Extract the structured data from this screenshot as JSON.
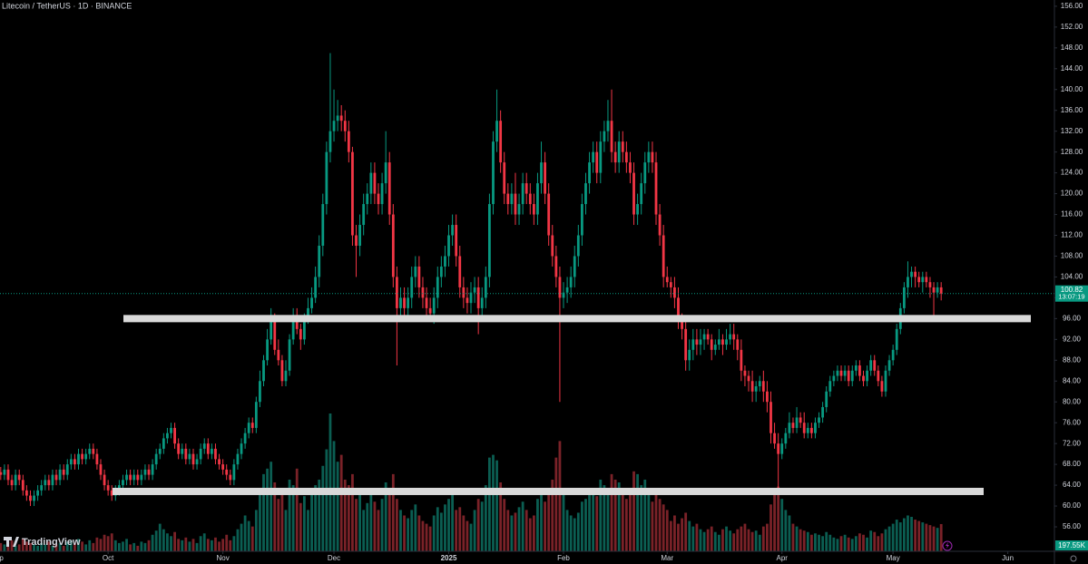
{
  "chart_data": {
    "type": "candlestick",
    "title": "Litecoin / TetherUS · 1D · BINANCE",
    "watermark": "TradingView",
    "up_color": "#089981",
    "down_color": "#f23645",
    "up_volume_color": "#0b5e52",
    "down_volume_color": "#7a2228",
    "level_color": "#d9d9d9",
    "grid": false,
    "xlim": [
      -0.2,
      284.1
    ],
    "ylim": [
      51.3,
      157.2
    ],
    "volume_lim": [
      0,
      4000
    ],
    "xticks": [
      {
        "value": -1,
        "label": "Sep"
      },
      {
        "value": 29,
        "label": "Oct"
      },
      {
        "value": 60,
        "label": "Nov"
      },
      {
        "value": 90,
        "label": "Dec"
      },
      {
        "value": 121,
        "label": "2025"
      },
      {
        "value": 152,
        "label": "Feb"
      },
      {
        "value": 180,
        "label": "Mar"
      },
      {
        "value": 211,
        "label": "Apr"
      },
      {
        "value": 241,
        "label": "May"
      },
      {
        "value": 272,
        "label": "Jun"
      }
    ],
    "yticks": [
      {
        "value": 56,
        "label": "56.00"
      },
      {
        "value": 60,
        "label": "60.00"
      },
      {
        "value": 64,
        "label": "64.00"
      },
      {
        "value": 68,
        "label": "68.00"
      },
      {
        "value": 72,
        "label": "72.00"
      },
      {
        "value": 76,
        "label": "76.00"
      },
      {
        "value": 80,
        "label": "80.00"
      },
      {
        "value": 84,
        "label": "84.00"
      },
      {
        "value": 88,
        "label": "88.00"
      },
      {
        "value": 92,
        "label": "92.00"
      },
      {
        "value": 96,
        "label": "96.00"
      },
      {
        "value": 100,
        "label": "100.00"
      },
      {
        "value": 104,
        "label": "104.00"
      },
      {
        "value": 108,
        "label": "108.00"
      },
      {
        "value": 112,
        "label": "112.00"
      },
      {
        "value": 116,
        "label": "116.00"
      },
      {
        "value": 120,
        "label": "120.00"
      },
      {
        "value": 124,
        "label": "124.00"
      },
      {
        "value": 128,
        "label": "128.00"
      },
      {
        "value": 132,
        "label": "132.00"
      },
      {
        "value": 136,
        "label": "136.00"
      },
      {
        "value": 140,
        "label": "140.00"
      },
      {
        "value": 144,
        "label": "144.00"
      },
      {
        "value": 148,
        "label": "148.00"
      },
      {
        "value": 152,
        "label": "152.00"
      },
      {
        "value": 156,
        "label": "156.00"
      }
    ],
    "levels": [
      96,
      62.8
    ],
    "open": [
      66.5,
      66,
      67,
      65,
      64,
      66,
      65,
      63,
      62,
      61,
      62,
      63,
      64,
      65,
      64,
      66,
      65,
      67,
      66,
      68,
      69,
      68,
      70,
      69,
      70,
      71,
      70,
      68,
      66,
      64,
      63,
      62,
      63,
      64,
      65,
      66,
      65,
      66,
      65,
      66,
      67,
      66,
      68,
      70,
      71,
      73,
      74,
      75,
      72,
      70,
      71,
      69,
      70,
      68,
      69,
      71,
      72,
      70,
      71,
      69,
      68,
      67,
      66,
      65,
      68,
      70,
      72,
      74,
      76,
      75,
      80,
      84,
      88,
      92,
      96,
      90,
      88,
      84,
      86,
      92,
      96,
      94,
      92,
      96,
      98,
      100,
      104,
      110,
      118,
      128,
      132,
      134,
      135,
      134,
      132,
      128,
      112,
      110,
      114,
      118,
      120,
      124,
      120,
      118,
      122,
      126,
      116,
      104,
      98,
      100,
      98,
      100,
      104,
      106,
      102,
      100,
      98,
      97,
      100,
      104,
      106,
      108,
      112,
      114,
      108,
      102,
      100,
      99,
      101,
      102,
      98,
      100,
      104,
      118,
      130,
      134,
      126,
      120,
      118,
      120,
      116,
      118,
      122,
      120,
      118,
      116,
      122,
      126,
      120,
      112,
      108,
      104,
      100,
      101,
      102,
      104,
      108,
      112,
      118,
      122,
      126,
      128,
      124,
      130,
      132,
      134,
      128,
      126,
      130,
      128,
      126,
      124,
      116,
      118,
      122,
      126,
      128,
      126,
      116,
      112,
      104,
      103,
      102,
      100,
      96,
      94,
      88,
      90,
      92,
      91,
      92,
      93,
      92,
      90,
      91,
      92,
      91,
      92,
      93,
      92,
      90,
      86,
      85,
      84,
      82,
      83,
      84,
      82,
      80,
      74,
      72,
      70,
      72,
      74,
      76,
      75,
      77,
      76,
      74,
      75,
      74,
      76,
      77,
      79,
      82,
      84,
      85,
      86,
      85,
      86,
      84,
      86,
      87,
      85,
      84,
      86,
      88,
      86,
      84,
      82,
      86,
      88,
      90,
      94,
      98,
      102,
      104,
      105,
      104,
      103,
      104,
      103,
      102,
      101,
      102
    ],
    "high": [
      67.5,
      68,
      68,
      66,
      67,
      67,
      66,
      64,
      63,
      63,
      64,
      65,
      66,
      66,
      67,
      67,
      68,
      68,
      69,
      70,
      70,
      71,
      71,
      71,
      72,
      72,
      71,
      69,
      67,
      65,
      64,
      64,
      65,
      66,
      67,
      67,
      67,
      67,
      67,
      68,
      68,
      69,
      71,
      72,
      74,
      75,
      76,
      76,
      73,
      72,
      72,
      71,
      71,
      70,
      72,
      73,
      73,
      72,
      72,
      70,
      69,
      68,
      67,
      69,
      71,
      73,
      75,
      77,
      77,
      81,
      86,
      89,
      94,
      98,
      97,
      92,
      89,
      88,
      93,
      98,
      98,
      95,
      97,
      100,
      102,
      106,
      112,
      120,
      130,
      147,
      140,
      138,
      137,
      136,
      134,
      129,
      114,
      116,
      120,
      122,
      126,
      126,
      122,
      124,
      132,
      128,
      118,
      106,
      102,
      102,
      102,
      106,
      108,
      108,
      104,
      102,
      100,
      102,
      106,
      108,
      110,
      114,
      116,
      116,
      110,
      104,
      102,
      103,
      104,
      104,
      102,
      106,
      120,
      132,
      140,
      136,
      128,
      122,
      122,
      124,
      120,
      124,
      124,
      122,
      120,
      124,
      130,
      128,
      122,
      114,
      110,
      106,
      103,
      104,
      106,
      110,
      114,
      120,
      124,
      128,
      130,
      130,
      132,
      134,
      138,
      140,
      130,
      132,
      132,
      130,
      128,
      126,
      120,
      124,
      128,
      130,
      130,
      128,
      118,
      114,
      106,
      104,
      104,
      102,
      97,
      96,
      92,
      94,
      94,
      94,
      94,
      94,
      93,
      92,
      94,
      93,
      94,
      95,
      95,
      93,
      92,
      87,
      86,
      86,
      84,
      85,
      86,
      84,
      82,
      76,
      74,
      73,
      75,
      78,
      77,
      79,
      78,
      78,
      76,
      76,
      77,
      78,
      80,
      83,
      85,
      86,
      87,
      87,
      87,
      87,
      87,
      88,
      88,
      86,
      87,
      89,
      89,
      87,
      85,
      87,
      89,
      91,
      95,
      99,
      103,
      107,
      106,
      106,
      105,
      105,
      105,
      104,
      103,
      103,
      103
    ],
    "low": [
      65,
      65,
      64,
      63,
      63,
      64,
      62,
      61,
      60,
      60,
      61,
      62,
      63,
      63,
      63,
      64,
      64,
      65,
      65,
      67,
      67,
      67,
      68,
      68,
      69,
      69,
      67,
      65,
      63,
      62,
      61,
      61,
      62,
      63,
      64,
      64,
      64,
      64,
      64,
      65,
      65,
      65,
      67,
      69,
      70,
      72,
      73,
      71,
      69,
      69,
      68,
      68,
      67,
      67,
      68,
      70,
      69,
      69,
      68,
      67,
      66,
      65,
      64,
      64,
      67,
      69,
      71,
      73,
      74,
      74,
      79,
      83,
      87,
      91,
      89,
      87,
      83,
      83,
      85,
      91,
      93,
      90,
      91,
      95,
      97,
      99,
      102,
      108,
      116,
      126,
      130,
      132,
      132,
      130,
      126,
      110,
      104,
      108,
      112,
      116,
      118,
      118,
      116,
      116,
      120,
      114,
      102,
      87,
      96,
      96,
      96,
      98,
      102,
      100,
      98,
      96,
      96,
      95,
      98,
      102,
      104,
      106,
      110,
      106,
      100,
      98,
      97,
      97,
      99,
      93,
      96,
      98,
      102,
      116,
      128,
      124,
      118,
      116,
      116,
      114,
      114,
      116,
      118,
      116,
      114,
      114,
      120,
      118,
      110,
      106,
      102,
      80,
      98,
      99,
      100,
      102,
      106,
      110,
      116,
      120,
      124,
      122,
      122,
      128,
      130,
      126,
      124,
      124,
      126,
      124,
      122,
      114,
      114,
      116,
      120,
      124,
      124,
      114,
      110,
      102,
      102,
      100,
      98,
      94,
      92,
      86,
      86,
      88,
      89,
      89,
      90,
      91,
      88,
      89,
      90,
      89,
      90,
      91,
      90,
      88,
      84,
      83,
      82,
      80,
      80,
      82,
      80,
      78,
      72,
      71,
      63,
      69,
      71,
      73,
      74,
      74,
      75,
      73,
      73,
      73,
      73,
      75,
      76,
      78,
      81,
      83,
      84,
      84,
      84,
      83,
      83,
      85,
      84,
      83,
      83,
      85,
      85,
      83,
      81,
      81,
      85,
      87,
      89,
      93,
      97,
      100,
      102,
      102,
      102,
      101,
      102,
      100,
      96,
      100,
      99.5
    ],
    "close": [
      66,
      67,
      65,
      64,
      66,
      65,
      63,
      62,
      61,
      62,
      63,
      64,
      65,
      64,
      66,
      65,
      67,
      66,
      68,
      69,
      68,
      70,
      69,
      70,
      71,
      70,
      68,
      66,
      64,
      63,
      62,
      63,
      64,
      65,
      66,
      65,
      66,
      65,
      66,
      67,
      66,
      68,
      70,
      71,
      73,
      74,
      75,
      72,
      70,
      71,
      69,
      70,
      68,
      69,
      71,
      72,
      70,
      71,
      69,
      68,
      67,
      66,
      65,
      68,
      70,
      72,
      74,
      76,
      75,
      80,
      84,
      88,
      92,
      96,
      90,
      88,
      84,
      86,
      92,
      96,
      94,
      92,
      96,
      98,
      100,
      104,
      110,
      118,
      128,
      132,
      134,
      135,
      134,
      132,
      128,
      112,
      110,
      114,
      118,
      120,
      124,
      120,
      118,
      122,
      126,
      116,
      104,
      98,
      100,
      98,
      100,
      104,
      106,
      102,
      100,
      98,
      97,
      100,
      104,
      106,
      108,
      112,
      114,
      108,
      102,
      100,
      99,
      101,
      102,
      98,
      100,
      104,
      118,
      130,
      134,
      126,
      120,
      118,
      120,
      116,
      118,
      122,
      120,
      118,
      116,
      122,
      126,
      120,
      112,
      108,
      104,
      100,
      101,
      102,
      104,
      108,
      112,
      118,
      122,
      126,
      128,
      124,
      130,
      132,
      134,
      128,
      126,
      130,
      128,
      126,
      124,
      116,
      118,
      122,
      126,
      128,
      126,
      116,
      112,
      104,
      103,
      102,
      100,
      96,
      94,
      88,
      90,
      92,
      91,
      92,
      93,
      92,
      90,
      91,
      92,
      91,
      92,
      93,
      92,
      90,
      86,
      85,
      84,
      82,
      83,
      84,
      82,
      80,
      74,
      72,
      70,
      72,
      74,
      76,
      75,
      77,
      76,
      74,
      75,
      74,
      76,
      77,
      79,
      82,
      84,
      85,
      86,
      85,
      86,
      84,
      86,
      87,
      85,
      84,
      86,
      88,
      86,
      84,
      82,
      86,
      88,
      90,
      94,
      98,
      102,
      104,
      105,
      104,
      103,
      104,
      103,
      102,
      101,
      102,
      100.82
    ],
    "volume": [
      60,
      50,
      70,
      80,
      40,
      50,
      90,
      70,
      60,
      50,
      40,
      60,
      50,
      70,
      40,
      50,
      60,
      40,
      70,
      80,
      60,
      90,
      70,
      50,
      80,
      60,
      100,
      90,
      120,
      110,
      130,
      80,
      60,
      70,
      90,
      50,
      60,
      40,
      70,
      60,
      80,
      120,
      150,
      200,
      160,
      130,
      110,
      140,
      90,
      80,
      100,
      70,
      90,
      60,
      110,
      130,
      90,
      80,
      100,
      70,
      90,
      120,
      80,
      110,
      160,
      200,
      260,
      220,
      180,
      300,
      420,
      560,
      600,
      650,
      500,
      380,
      420,
      300,
      520,
      480,
      600,
      350,
      400,
      300,
      420,
      480,
      520,
      620,
      740,
      1000,
      800,
      650,
      700,
      520,
      480,
      560,
      380,
      460,
      300,
      350,
      420,
      360,
      300,
      380,
      500,
      460,
      560,
      380,
      300,
      260,
      240,
      300,
      340,
      260,
      220,
      200,
      180,
      260,
      320,
      280,
      340,
      380,
      420,
      300,
      320,
      260,
      220,
      200,
      300,
      380,
      360,
      480,
      680,
      700,
      660,
      500,
      380,
      300,
      260,
      280,
      320,
      360,
      300,
      240,
      260,
      380,
      420,
      360,
      460,
      520,
      680,
      800,
      420,
      300,
      260,
      240,
      280,
      360,
      380,
      420,
      440,
      400,
      520,
      480,
      460,
      560,
      520,
      500,
      460,
      380,
      420,
      580,
      560,
      480,
      520,
      420,
      360,
      460,
      380,
      340,
      300,
      220,
      260,
      200,
      240,
      280,
      220,
      180,
      200,
      160,
      140,
      160,
      180,
      140,
      120,
      160,
      180,
      150,
      130,
      160,
      180,
      200,
      160,
      140,
      150,
      120,
      180,
      200,
      340,
      420,
      470,
      380,
      300,
      260,
      200,
      180,
      160,
      150,
      140,
      120,
      130,
      120,
      110,
      140,
      120,
      100,
      90,
      110,
      120,
      100,
      90,
      110,
      130,
      120,
      100,
      150,
      140,
      110,
      130,
      160,
      180,
      200,
      230,
      210,
      240,
      260,
      250,
      230,
      220,
      210,
      200,
      190,
      180,
      170,
      197.55
    ],
    "last_price_label": "100.82",
    "countdown": "13:07:19",
    "last_volume_label": "197.55K"
  }
}
